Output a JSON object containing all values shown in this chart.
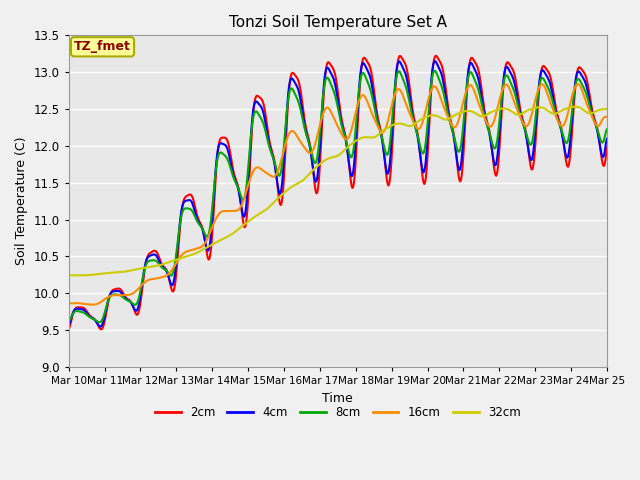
{
  "title": "Tonzi Soil Temperature Set A",
  "xlabel": "Time",
  "ylabel": "Soil Temperature (C)",
  "ylim": [
    9.0,
    13.5
  ],
  "annotation_text": "TZ_fmet",
  "annotation_color": "#8B0000",
  "annotation_bg": "#FFFF99",
  "annotation_border": "#AAAA00",
  "plot_bg_color": "#E8E8E8",
  "fig_bg_color": "#F0F0F0",
  "grid_color": "#FFFFFF",
  "x_tick_labels": [
    "Mar 10",
    "Mar 11",
    "Mar 12",
    "Mar 13",
    "Mar 14",
    "Mar 15",
    "Mar 16",
    "Mar 17",
    "Mar 18",
    "Mar 19",
    "Mar 20",
    "Mar 21",
    "Mar 22",
    "Mar 23",
    "Mar 24",
    "Mar 25"
  ],
  "series_labels": [
    "2cm",
    "4cm",
    "8cm",
    "16cm",
    "32cm"
  ],
  "series_colors": [
    "#FF0000",
    "#0000FF",
    "#00AA00",
    "#FF8C00",
    "#CCCC00"
  ],
  "series_linewidths": [
    1.5,
    1.5,
    1.5,
    1.5,
    1.5
  ]
}
